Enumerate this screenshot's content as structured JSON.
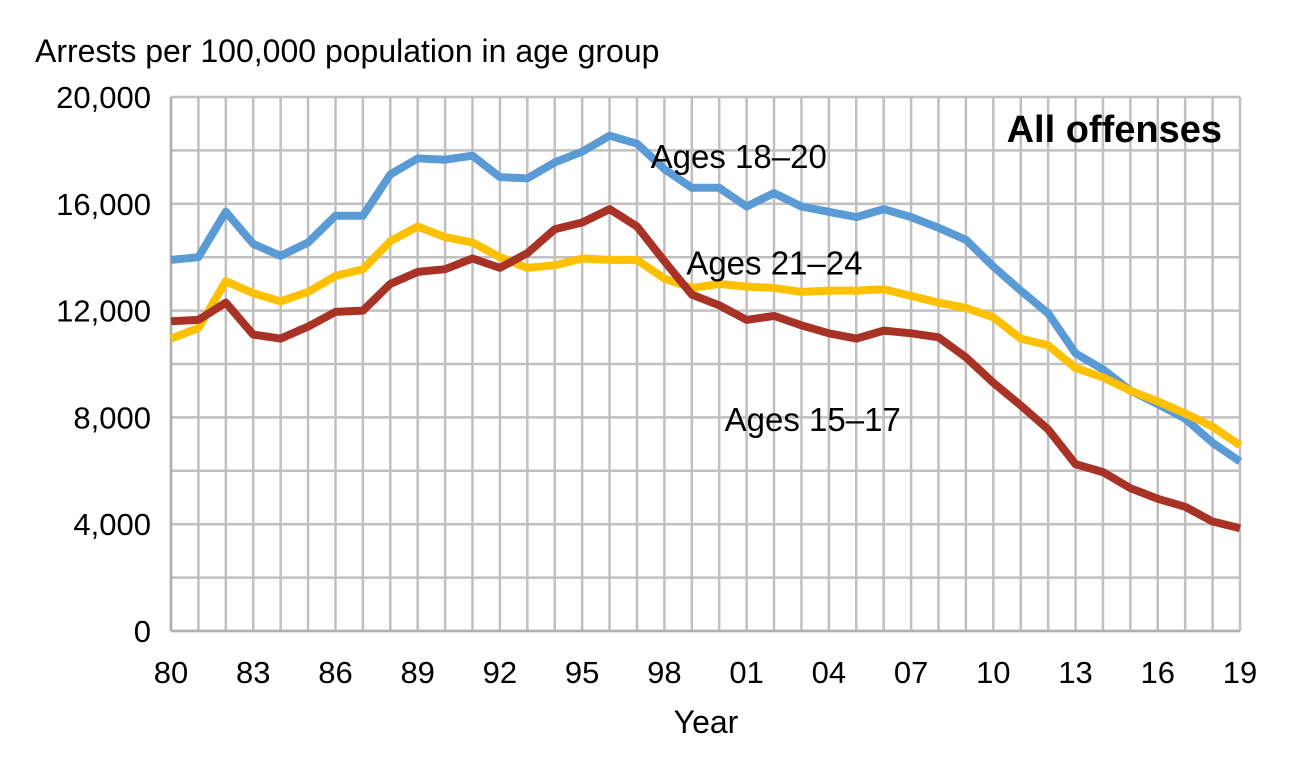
{
  "chart_data": {
    "type": "line",
    "title": "All offenses",
    "ylabel": "Arrests per 100,000 population in age group",
    "xlabel": "Year",
    "ylim": [
      0,
      20000
    ],
    "xlim": [
      1980,
      2019
    ],
    "y_ticks": [
      0,
      4000,
      8000,
      12000,
      16000,
      20000
    ],
    "y_tick_labels": [
      "0",
      "4,000",
      "8,000",
      "12,000",
      "16,000",
      "20,000"
    ],
    "x_tick_years": [
      1980,
      1983,
      1986,
      1989,
      1992,
      1995,
      1998,
      2001,
      2004,
      2007,
      2010,
      2013,
      2016,
      2019
    ],
    "x_tick_labels": [
      "80",
      "83",
      "86",
      "89",
      "92",
      "95",
      "98",
      "01",
      "04",
      "07",
      "10",
      "13",
      "16",
      "19"
    ],
    "grid": true,
    "legend": "none",
    "x": [
      1980,
      1981,
      1982,
      1983,
      1984,
      1985,
      1986,
      1987,
      1988,
      1989,
      1990,
      1991,
      1992,
      1993,
      1994,
      1995,
      1996,
      1997,
      1998,
      1999,
      2000,
      2001,
      2002,
      2003,
      2004,
      2005,
      2006,
      2007,
      2008,
      2009,
      2010,
      2011,
      2012,
      2013,
      2014,
      2015,
      2016,
      2017,
      2018,
      2019
    ],
    "series": [
      {
        "name": "Ages 18–20",
        "color": "#5b9bd5",
        "values": [
          13900,
          14000,
          15700,
          14500,
          14050,
          14550,
          15550,
          15550,
          17100,
          17700,
          17650,
          17800,
          17000,
          16950,
          17550,
          17950,
          18550,
          18250,
          17300,
          16600,
          16600,
          15900,
          16400,
          15900,
          15700,
          15500,
          15800,
          15500,
          15100,
          14650,
          13650,
          12750,
          11900,
          10400,
          9800,
          9000,
          8500,
          7950,
          7050,
          6350
        ],
        "label_text": "Ages 18–20",
        "label_x": 1997.5,
        "label_y": 17350
      },
      {
        "name": "Ages 21–24",
        "color": "#ffc000",
        "values": [
          10950,
          11350,
          13100,
          12650,
          12350,
          12700,
          13300,
          13550,
          14600,
          15150,
          14750,
          14550,
          14000,
          13600,
          13700,
          13950,
          13900,
          13900,
          13200,
          12850,
          13000,
          12900,
          12850,
          12700,
          12750,
          12750,
          12800,
          12550,
          12300,
          12100,
          11750,
          10950,
          10700,
          9850,
          9500,
          9000,
          8600,
          8150,
          7650,
          6950
        ],
        "label_text": "Ages 21–24",
        "label_x": 1998.8,
        "label_y": 13350
      },
      {
        "name": "Ages 15–17",
        "color": "#a93226",
        "values": [
          11600,
          11650,
          12300,
          11100,
          10950,
          11400,
          11950,
          12000,
          13000,
          13450,
          13550,
          13950,
          13600,
          14150,
          15050,
          15300,
          15800,
          15150,
          13850,
          12600,
          12200,
          11650,
          11800,
          11450,
          11150,
          10950,
          11250,
          11150,
          11000,
          10250,
          9300,
          8450,
          7550,
          6250,
          5950,
          5350,
          4950,
          4650,
          4100,
          3850
        ],
        "label_text": "Ages 15–17",
        "label_x": 2000.2,
        "label_y": 7500
      }
    ]
  }
}
